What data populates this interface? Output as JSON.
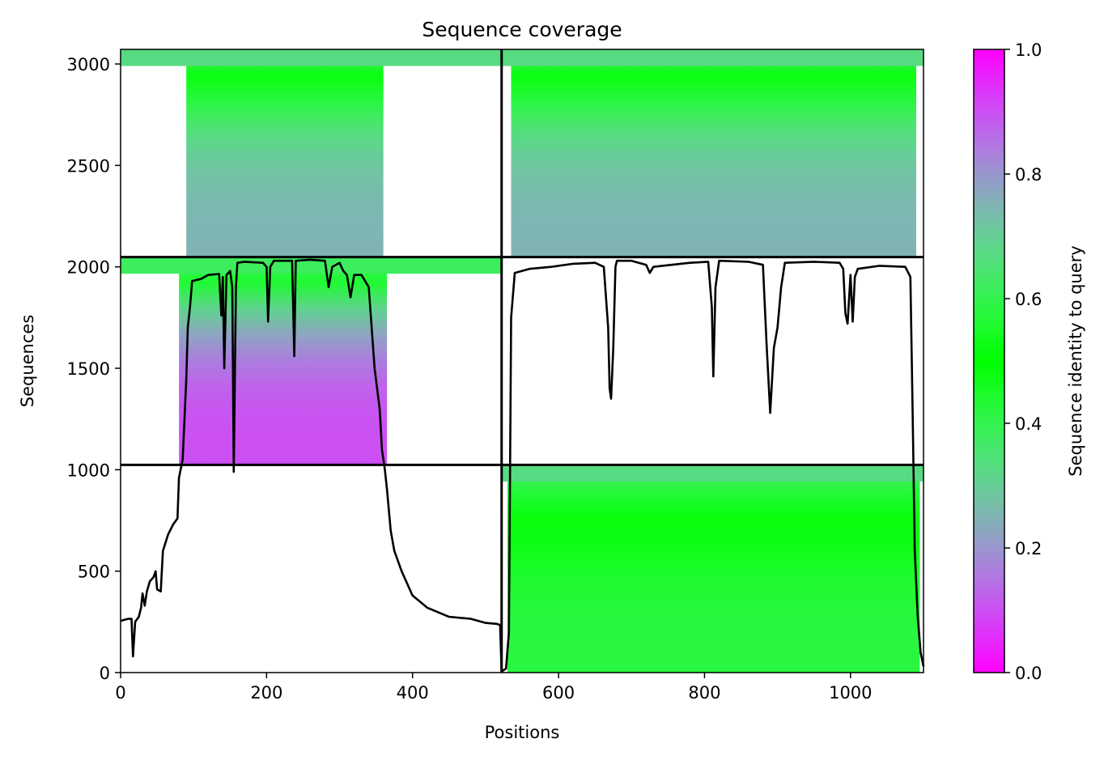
{
  "chart_data": {
    "type": "heatmap",
    "title": "Sequence coverage",
    "xlabel": "Positions",
    "ylabel": "Sequences",
    "xlim": [
      0,
      1100
    ],
    "ylim": [
      0,
      3072
    ],
    "xticks": [
      0,
      200,
      400,
      600,
      800,
      1000
    ],
    "yticks": [
      0,
      500,
      1000,
      1500,
      2000,
      2500,
      3000
    ],
    "colorbar": {
      "label": "Sequence identity to query",
      "range": [
        0,
        1
      ],
      "ticks": [
        0.0,
        0.2,
        0.4,
        0.6,
        0.8,
        1.0
      ],
      "tick_labels": [
        "0.0",
        "0.2",
        "0.4",
        "0.6",
        "0.8",
        "1.0"
      ],
      "colormap": "rainbow_r"
    },
    "chain_boundaries": {
      "x": [
        522
      ],
      "y": [
        1024,
        2048
      ]
    },
    "blocks": [
      {
        "name": "lower-right",
        "x_start": 522,
        "x_end": 1100,
        "y_start": 0,
        "y_end": 1024,
        "coverage_x": [
          530,
          1095
        ],
        "identity_bottom": 0.42,
        "identity_top": 0.65
      },
      {
        "name": "middle-left",
        "x_start": 0,
        "x_end": 522,
        "y_start": 1024,
        "y_end": 2048,
        "coverage_x": [
          80,
          365
        ],
        "identity_bottom": 0.1,
        "identity_top": 0.6
      },
      {
        "name": "top-left",
        "x_start": 0,
        "x_end": 522,
        "y_start": 2048,
        "y_end": 3072,
        "coverage_x": [
          90,
          360
        ],
        "identity_bottom": 0.25,
        "identity_top": 0.65
      },
      {
        "name": "top-right",
        "x_start": 522,
        "x_end": 1100,
        "y_start": 2048,
        "y_end": 3072,
        "coverage_x": [
          535,
          1090
        ],
        "identity_bottom": 0.25,
        "identity_top": 0.65
      }
    ],
    "coverage_line": {
      "name": "coverage",
      "color": "#000000",
      "points": [
        [
          0,
          255
        ],
        [
          10,
          265
        ],
        [
          15,
          265
        ],
        [
          17,
          80
        ],
        [
          20,
          250
        ],
        [
          25,
          275
        ],
        [
          28,
          320
        ],
        [
          30,
          390
        ],
        [
          33,
          330
        ],
        [
          36,
          400
        ],
        [
          40,
          450
        ],
        [
          45,
          470
        ],
        [
          48,
          500
        ],
        [
          50,
          410
        ],
        [
          55,
          400
        ],
        [
          58,
          600
        ],
        [
          65,
          680
        ],
        [
          72,
          730
        ],
        [
          78,
          760
        ],
        [
          80,
          960
        ],
        [
          85,
          1050
        ],
        [
          90,
          1450
        ],
        [
          92,
          1700
        ],
        [
          95,
          1800
        ],
        [
          98,
          1930
        ],
        [
          110,
          1940
        ],
        [
          120,
          1960
        ],
        [
          135,
          1965
        ],
        [
          138,
          1760
        ],
        [
          140,
          1950
        ],
        [
          142,
          1500
        ],
        [
          145,
          1960
        ],
        [
          150,
          1980
        ],
        [
          153,
          1900
        ],
        [
          155,
          990
        ],
        [
          158,
          1900
        ],
        [
          160,
          2020
        ],
        [
          170,
          2025
        ],
        [
          195,
          2020
        ],
        [
          200,
          2000
        ],
        [
          202,
          1730
        ],
        [
          205,
          2000
        ],
        [
          210,
          2030
        ],
        [
          235,
          2030
        ],
        [
          238,
          1560
        ],
        [
          240,
          2030
        ],
        [
          260,
          2035
        ],
        [
          280,
          2030
        ],
        [
          285,
          1900
        ],
        [
          290,
          2000
        ],
        [
          300,
          2020
        ],
        [
          305,
          1980
        ],
        [
          310,
          1960
        ],
        [
          315,
          1850
        ],
        [
          320,
          1960
        ],
        [
          330,
          1960
        ],
        [
          340,
          1900
        ],
        [
          348,
          1500
        ],
        [
          355,
          1300
        ],
        [
          358,
          1100
        ],
        [
          362,
          1000
        ],
        [
          365,
          900
        ],
        [
          370,
          700
        ],
        [
          375,
          600
        ],
        [
          385,
          500
        ],
        [
          400,
          380
        ],
        [
          420,
          320
        ],
        [
          450,
          275
        ],
        [
          480,
          265
        ],
        [
          500,
          245
        ],
        [
          515,
          240
        ],
        [
          520,
          235
        ],
        [
          522,
          5
        ],
        [
          528,
          20
        ],
        [
          532,
          200
        ],
        [
          535,
          1750
        ],
        [
          540,
          1970
        ],
        [
          560,
          1990
        ],
        [
          590,
          2000
        ],
        [
          620,
          2015
        ],
        [
          650,
          2020
        ],
        [
          662,
          2000
        ],
        [
          668,
          1700
        ],
        [
          670,
          1400
        ],
        [
          672,
          1350
        ],
        [
          675,
          1600
        ],
        [
          678,
          2000
        ],
        [
          680,
          2030
        ],
        [
          700,
          2030
        ],
        [
          720,
          2010
        ],
        [
          725,
          1970
        ],
        [
          730,
          2000
        ],
        [
          780,
          2020
        ],
        [
          805,
          2025
        ],
        [
          810,
          1800
        ],
        [
          812,
          1460
        ],
        [
          815,
          1900
        ],
        [
          820,
          2030
        ],
        [
          860,
          2025
        ],
        [
          880,
          2010
        ],
        [
          885,
          1620
        ],
        [
          890,
          1280
        ],
        [
          895,
          1600
        ],
        [
          900,
          1700
        ],
        [
          905,
          1900
        ],
        [
          910,
          2020
        ],
        [
          950,
          2025
        ],
        [
          985,
          2020
        ],
        [
          990,
          1990
        ],
        [
          993,
          1770
        ],
        [
          996,
          1720
        ],
        [
          1000,
          1960
        ],
        [
          1003,
          1730
        ],
        [
          1006,
          1950
        ],
        [
          1010,
          1990
        ],
        [
          1040,
          2005
        ],
        [
          1075,
          2000
        ],
        [
          1082,
          1950
        ],
        [
          1085,
          1300
        ],
        [
          1088,
          600
        ],
        [
          1092,
          280
        ],
        [
          1096,
          100
        ],
        [
          1100,
          30
        ]
      ]
    }
  }
}
